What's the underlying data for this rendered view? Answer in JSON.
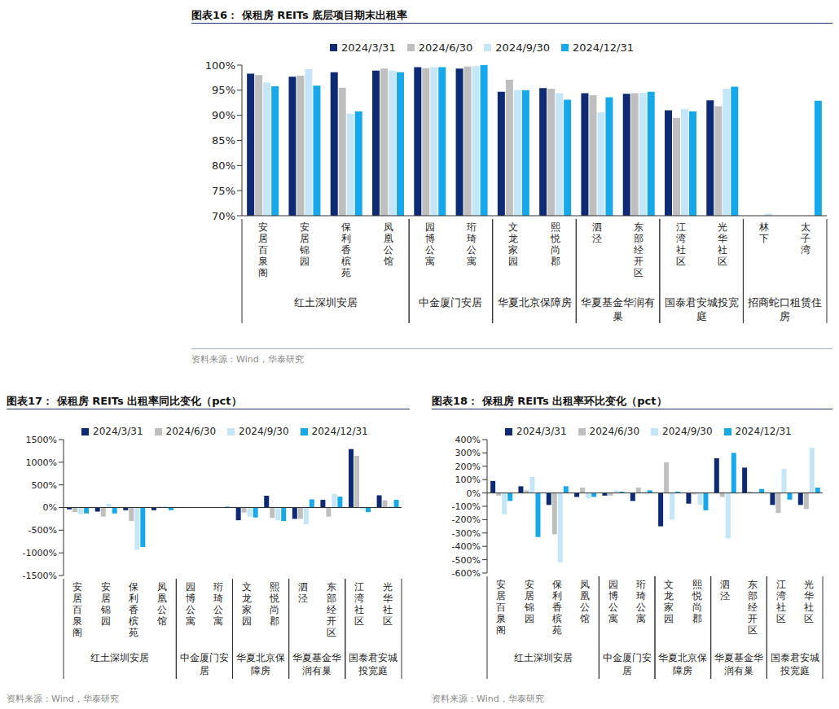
{
  "chart_data": [
    {
      "type": "bar",
      "title": "图表16：  保租房 REITs 底层项目期末出租率",
      "source": "资料来源：Wind，华泰研究",
      "legend": "top",
      "grid": false,
      "categories": [
        "安居百泉阁",
        "安居锦园",
        "保利香槟苑",
        "凤凰公馆",
        "园博公寓",
        "珩琦公寓",
        "文龙家园",
        "熙悦尚郡",
        "泗泾",
        "东部经开区",
        "江湾社区",
        "光华社区",
        "林下",
        "太子湾"
      ],
      "groups": [
        {
          "name": "红土深圳安居",
          "categories": [
            "安居百泉阁",
            "安居锦园",
            "保利香槟苑",
            "凤凰公馆"
          ]
        },
        {
          "name": "中金厦门安居",
          "categories": [
            "园博公寓",
            "珩琦公寓"
          ]
        },
        {
          "name": "华夏北京保障房",
          "categories": [
            "文龙家园",
            "熙悦尚郡"
          ]
        },
        {
          "name": "华夏基金华润有巢",
          "categories": [
            "泗泾",
            "东部经开区"
          ]
        },
        {
          "name": "国泰君安城投宽庭",
          "categories": [
            "江湾社区",
            "光华社区"
          ]
        },
        {
          "name": "招商蛇口租赁住房",
          "categories": [
            "林下",
            "太子湾"
          ]
        }
      ],
      "series": [
        {
          "name": "2024/3/31",
          "color": "#0D2A73",
          "values": [
            98.3,
            97.7,
            98.6,
            98.9,
            99.6,
            99.3,
            94.7,
            95.4,
            94.4,
            94.3,
            91.0,
            93.0,
            null,
            null
          ]
        },
        {
          "name": "2024/6/30",
          "color": "#BFBFBF",
          "values": [
            98.0,
            97.9,
            95.5,
            99.3,
            99.4,
            99.7,
            97.1,
            95.3,
            94.0,
            94.4,
            89.5,
            91.8,
            null,
            null
          ]
        },
        {
          "name": "2024/9/30",
          "color": "#C4E6F6",
          "values": [
            96.5,
            99.2,
            90.3,
            98.9,
            99.6,
            99.8,
            95.0,
            94.4,
            90.6,
            94.5,
            91.3,
            95.3,
            70.4,
            null
          ]
        },
        {
          "name": "2024/12/31",
          "color": "#16A8E8",
          "values": [
            95.8,
            95.9,
            90.8,
            98.6,
            99.6,
            100.0,
            95.0,
            93.1,
            93.6,
            94.7,
            90.8,
            95.7,
            null,
            92.9
          ]
        }
      ],
      "ylim": [
        70,
        100
      ],
      "yticks": [
        {
          "value": 70,
          "label": "70%"
        },
        {
          "value": 75,
          "label": "75%"
        },
        {
          "value": 80,
          "label": "80%"
        },
        {
          "value": 85,
          "label": "85%"
        },
        {
          "value": 90,
          "label": "90%"
        },
        {
          "value": 95,
          "label": "95%"
        },
        {
          "value": 100,
          "label": "100%"
        }
      ]
    },
    {
      "type": "bar",
      "title": "图表17：  保租房 REITs 出租率同比变化（pct）",
      "source": "资料来源：Wind，华泰研究",
      "legend": "top",
      "grid": false,
      "categories": [
        "安居百泉阁",
        "安居锦园",
        "保利香槟苑",
        "凤凰公馆",
        "园博公寓",
        "珩琦公寓",
        "文龙家园",
        "熙悦尚郡",
        "泗泾",
        "东部经开区",
        "江湾社区",
        "光华社区"
      ],
      "groups": [
        {
          "name": "红土深圳安居",
          "categories": [
            "安居百泉阁",
            "安居锦园",
            "保利香槟苑",
            "凤凰公馆"
          ]
        },
        {
          "name": "中金厦门安居",
          "categories": [
            "园博公寓",
            "珩琦公寓"
          ]
        },
        {
          "name": "华夏北京保障房",
          "categories": [
            "文龙家园",
            "熙悦尚郡"
          ]
        },
        {
          "name": "华夏基金华润有巢",
          "categories": [
            "泗泾",
            "东部经开区"
          ]
        },
        {
          "name": "国泰君安城投宽庭",
          "categories": [
            "江湾社区",
            "光华社区"
          ]
        }
      ],
      "series": [
        {
          "name": "2024/3/31",
          "color": "#0D2A73",
          "values": [
            -40,
            -90,
            -60,
            -60,
            10,
            0,
            -280,
            260,
            -250,
            170,
            1290,
            270
          ]
        },
        {
          "name": "2024/6/30",
          "color": "#BFBFBF",
          "values": [
            -100,
            -200,
            -300,
            20,
            10,
            10,
            -110,
            -230,
            -250,
            -200,
            1140,
            160
          ]
        },
        {
          "name": "2024/9/30",
          "color": "#C4E6F6",
          "values": [
            -150,
            80,
            -930,
            30,
            10,
            10,
            -200,
            -280,
            -370,
            300,
            -50,
            40
          ]
        },
        {
          "name": "2024/12/31",
          "color": "#16A8E8",
          "values": [
            -130,
            -130,
            -870,
            -60,
            10,
            20,
            -220,
            -300,
            180,
            240,
            -100,
            170
          ]
        }
      ],
      "ylim": [
        -1500,
        1500
      ],
      "yticks": [
        {
          "value": -1500,
          "label": "-1500%"
        },
        {
          "value": -1000,
          "label": "-1000%"
        },
        {
          "value": -500,
          "label": "-500%"
        },
        {
          "value": 0,
          "label": "0%"
        },
        {
          "value": 500,
          "label": "500%"
        },
        {
          "value": 1000,
          "label": "1000%"
        },
        {
          "value": 1500,
          "label": "1500%"
        }
      ]
    },
    {
      "type": "bar",
      "title": "图表18：  保租房 REITs 出租率环比变化（pct）",
      "source": "资料来源：Wind，华泰研究",
      "legend": "top",
      "grid": false,
      "categories": [
        "安居百泉阁",
        "安居锦园",
        "保利香槟苑",
        "凤凰公馆",
        "园博公寓",
        "珩琦公寓",
        "文龙家园",
        "熙悦尚郡",
        "泗泾",
        "东部经开区",
        "江湾社区",
        "光华社区"
      ],
      "groups": [
        {
          "name": "红土深圳安居",
          "categories": [
            "安居百泉阁",
            "安居锦园",
            "保利香槟苑",
            "凤凰公馆"
          ]
        },
        {
          "name": "中金厦门安居",
          "categories": [
            "园博公寓",
            "珩琦公寓"
          ]
        },
        {
          "name": "华夏北京保障房",
          "categories": [
            "文龙家园",
            "熙悦尚郡"
          ]
        },
        {
          "name": "华夏基金华润有巢",
          "categories": [
            "泗泾",
            "东部经开区"
          ]
        },
        {
          "name": "国泰君安城投宽庭",
          "categories": [
            "江湾社区",
            "光华社区"
          ]
        }
      ],
      "series": [
        {
          "name": "2024/3/31",
          "color": "#0D2A73",
          "values": [
            90,
            50,
            -90,
            -30,
            -20,
            -60,
            -250,
            -80,
            260,
            190,
            -90,
            -90
          ]
        },
        {
          "name": "2024/6/30",
          "color": "#BFBFBF",
          "values": [
            -20,
            20,
            -310,
            40,
            -20,
            40,
            230,
            -10,
            -30,
            10,
            -150,
            -120
          ]
        },
        {
          "name": "2024/9/30",
          "color": "#C4E6F6",
          "values": [
            -160,
            120,
            -520,
            -40,
            20,
            10,
            -200,
            -90,
            -340,
            10,
            180,
            340
          ]
        },
        {
          "name": "2024/12/31",
          "color": "#16A8E8",
          "values": [
            -60,
            -330,
            50,
            -30,
            10,
            20,
            10,
            -130,
            300,
            30,
            -50,
            40
          ]
        }
      ],
      "ylim": [
        -600,
        400
      ],
      "yticks": [
        {
          "value": -600,
          "label": "-600%"
        },
        {
          "value": -500,
          "label": "-500%"
        },
        {
          "value": -400,
          "label": "-400%"
        },
        {
          "value": -300,
          "label": "-300%"
        },
        {
          "value": -200,
          "label": "-200%"
        },
        {
          "value": -100,
          "label": "-100%"
        },
        {
          "value": 0,
          "label": "0%"
        },
        {
          "value": 100,
          "label": "100%"
        },
        {
          "value": 200,
          "label": "200%"
        },
        {
          "value": 300,
          "label": "300%"
        },
        {
          "value": 400,
          "label": "400%"
        }
      ]
    }
  ]
}
